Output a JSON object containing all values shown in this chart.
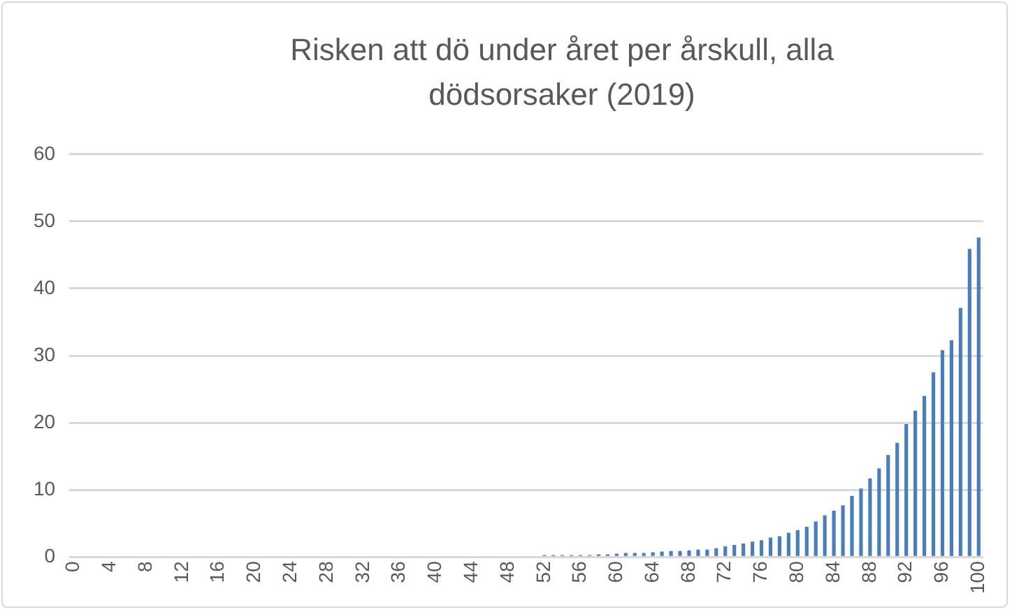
{
  "chart_data": {
    "type": "bar",
    "title": "Risken att dö under året per årskull, alla dödsorsaker (2019)",
    "categories": [
      "0",
      null,
      null,
      null,
      "4",
      null,
      null,
      null,
      "8",
      null,
      null,
      null,
      "12",
      null,
      null,
      null,
      "16",
      null,
      null,
      null,
      "20",
      null,
      null,
      null,
      "24",
      null,
      null,
      null,
      "28",
      null,
      null,
      null,
      "32",
      null,
      null,
      null,
      "36",
      null,
      null,
      null,
      "40",
      null,
      null,
      null,
      "44",
      null,
      null,
      null,
      "48",
      null,
      null,
      null,
      "52",
      null,
      null,
      null,
      "56",
      null,
      null,
      null,
      "60",
      null,
      null,
      null,
      "64",
      null,
      null,
      null,
      "68",
      null,
      null,
      null,
      "72",
      null,
      null,
      null,
      "76",
      null,
      null,
      null,
      "80",
      null,
      null,
      null,
      "84",
      null,
      null,
      null,
      "88",
      null,
      null,
      null,
      "92",
      null,
      null,
      null,
      "96",
      null,
      null,
      null,
      "100"
    ],
    "values": [
      0,
      0,
      0,
      0,
      0,
      0,
      0,
      0,
      0,
      0,
      0,
      0,
      0,
      0,
      0,
      0,
      0,
      0,
      0,
      0,
      0,
      0,
      0,
      0,
      0,
      0,
      0,
      0,
      0,
      0,
      0,
      0,
      0,
      0,
      0,
      0,
      0,
      0,
      0,
      0,
      0,
      0,
      0,
      0,
      0,
      0,
      0,
      0,
      0,
      0,
      0,
      0,
      0.3,
      0.3,
      0.3,
      0.3,
      0.3,
      0.3,
      0.4,
      0.4,
      0.5,
      0.6,
      0.6,
      0.6,
      0.7,
      0.8,
      0.9,
      0.9,
      1.0,
      1.1,
      1.1,
      1.3,
      1.6,
      1.8,
      2.0,
      2.3,
      2.5,
      2.9,
      3.1,
      3.6,
      4.0,
      4.5,
      5.3,
      6.2,
      6.9,
      7.7,
      9.1,
      10.2,
      11.7,
      13.2,
      15.2,
      17.0,
      19.8,
      21.8,
      24.0,
      27.5,
      30.8,
      32.3,
      37.1,
      45.9,
      47.6
    ],
    "color": "#4a7ebb",
    "ylim": [
      0,
      60
    ],
    "yticks": [
      0,
      10,
      20,
      30,
      40,
      50,
      60
    ],
    "grid": "y"
  }
}
